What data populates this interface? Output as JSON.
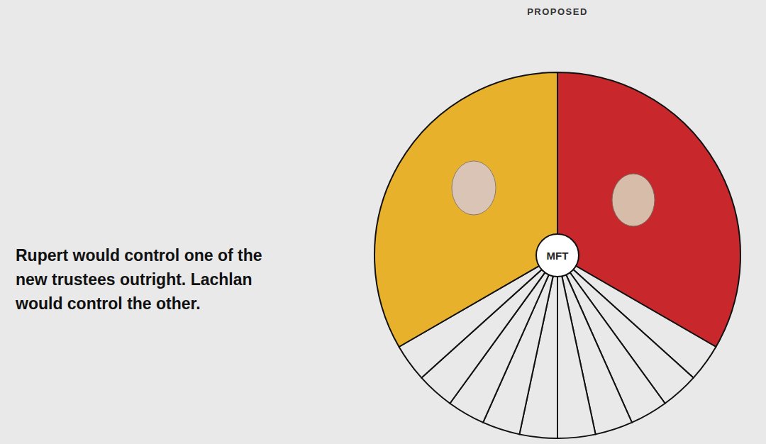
{
  "chart_data": {
    "type": "pie",
    "title": "PROPOSED",
    "annotation": "Rupert would control one of the new trustees outright. Lachlan would control the other.",
    "center_label": "MFT",
    "values": [
      10,
      1,
      1,
      1,
      1,
      1,
      1,
      1,
      1,
      1,
      1,
      10
    ],
    "colors": [
      "#c8272b",
      "#e9e9e9",
      "#e9e9e9",
      "#e9e9e9",
      "#e9e9e9",
      "#e9e9e9",
      "#e9e9e9",
      "#e9e9e9",
      "#e9e9e9",
      "#e9e9e9",
      "#e9e9e9",
      "#e8b12b"
    ]
  }
}
